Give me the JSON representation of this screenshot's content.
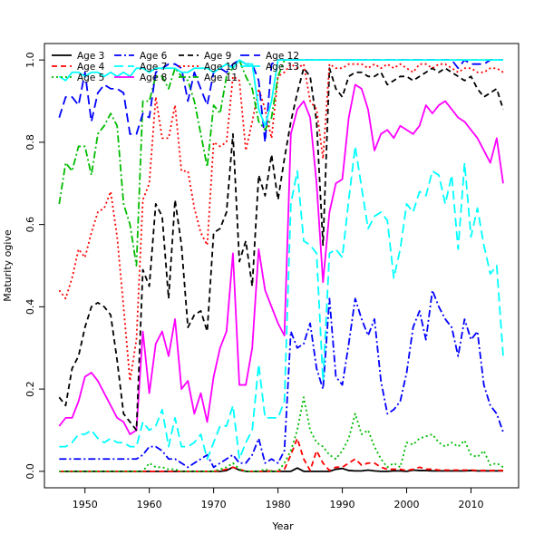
{
  "chart_data": {
    "type": "line",
    "title": "",
    "xlabel": "Year",
    "ylabel": "Maturity ogive",
    "xlim": [
      1943.7,
      2017.4
    ],
    "ylim": [
      -0.04,
      1.04
    ],
    "xticks": [
      1950,
      1960,
      1970,
      1980,
      1990,
      2000,
      2010
    ],
    "yticks": [
      0.0,
      0.2,
      0.4,
      0.6,
      0.8,
      1.0
    ],
    "ytick_labels": [
      "0.0",
      "0.2",
      "0.4",
      "0.6",
      "0.8",
      "1.0"
    ],
    "grid": false,
    "legend_position": "top-left",
    "legend_columns": 4,
    "x": [
      1946,
      1947,
      1948,
      1949,
      1950,
      1951,
      1952,
      1953,
      1954,
      1955,
      1956,
      1957,
      1958,
      1959,
      1960,
      1961,
      1962,
      1963,
      1964,
      1965,
      1966,
      1967,
      1968,
      1969,
      1970,
      1971,
      1972,
      1973,
      1974,
      1975,
      1976,
      1977,
      1978,
      1979,
      1980,
      1981,
      1982,
      1983,
      1984,
      1985,
      1986,
      1987,
      1988,
      1989,
      1990,
      1991,
      1992,
      1993,
      1994,
      1995,
      1996,
      1997,
      1998,
      1999,
      2000,
      2001,
      2002,
      2003,
      2004,
      2005,
      2006,
      2007,
      2008,
      2009,
      2010,
      2011,
      2012,
      2013,
      2014,
      2015
    ],
    "series": [
      {
        "name": "Age 3",
        "color": "#000000",
        "dash": "",
        "values": [
          0.0,
          0.0,
          0.0,
          0.0,
          0.0,
          0.0,
          0.0,
          0.0,
          0.0,
          0.0,
          0.0,
          0.0,
          0.0,
          0.0,
          0.0,
          0.0,
          0.0,
          0.0,
          0.0,
          0.0,
          0.0,
          0.0,
          0.0,
          0.0,
          0.0,
          0.0,
          0.002,
          0.01,
          0.003,
          0.0,
          0.0,
          0.0,
          0.0,
          0.0,
          0.0,
          0.0,
          0.0,
          0.008,
          0.0,
          0.0,
          0.0,
          0.0,
          0.0,
          0.005,
          0.007,
          0.002,
          0.001,
          0.001,
          0.003,
          0.001,
          0.0,
          0.0,
          0.001,
          0.001,
          0.0,
          0.003,
          0.002,
          0.002,
          0.001,
          0.001,
          0.001,
          0.001,
          0.001,
          0.001,
          0.002,
          0.001,
          0.001,
          0.001,
          0.001,
          0.001
        ]
      },
      {
        "name": "Age 4",
        "color": "#ff0000",
        "dash": "6,4",
        "values": [
          0.0,
          0.0,
          0.0,
          0.0,
          0.0,
          0.0,
          0.0,
          0.0,
          0.0,
          0.0,
          0.0,
          0.0,
          0.0,
          0.0,
          0.0,
          0.0,
          0.0,
          0.0,
          0.0,
          0.0,
          0.0,
          0.0,
          0.0,
          0.0,
          0.0,
          0.002,
          0.005,
          0.01,
          0.005,
          0.0,
          0.0,
          0.0,
          0.0,
          0.001,
          0.0,
          0.005,
          0.04,
          0.08,
          0.03,
          0.002,
          0.05,
          0.02,
          0.002,
          0.01,
          0.01,
          0.02,
          0.03,
          0.015,
          0.02,
          0.02,
          0.01,
          0.005,
          0.005,
          0.005,
          0.002,
          0.005,
          0.01,
          0.005,
          0.005,
          0.003,
          0.003,
          0.003,
          0.003,
          0.003,
          0.003,
          0.002,
          0.002,
          0.002,
          0.002,
          0.002
        ]
      },
      {
        "name": "Age 5",
        "color": "#00bb00",
        "dash": "2,3",
        "values": [
          0.0,
          0.0,
          0.0,
          0.0,
          0.0,
          0.0,
          0.0,
          0.0,
          0.0,
          0.0,
          0.0,
          0.0,
          0.0,
          0.0,
          0.02,
          0.01,
          0.01,
          0.005,
          0.005,
          0.0,
          0.0,
          0.0,
          0.0,
          0.0,
          0.0,
          0.005,
          0.01,
          0.02,
          0.005,
          0.0,
          0.0,
          0.0,
          0.005,
          0.0,
          0.0,
          0.02,
          0.05,
          0.1,
          0.18,
          0.1,
          0.07,
          0.06,
          0.04,
          0.03,
          0.05,
          0.08,
          0.14,
          0.09,
          0.1,
          0.06,
          0.03,
          0.01,
          0.02,
          0.01,
          0.07,
          0.065,
          0.08,
          0.085,
          0.09,
          0.07,
          0.06,
          0.07,
          0.06,
          0.075,
          0.04,
          0.035,
          0.05,
          0.015,
          0.02,
          0.01
        ]
      },
      {
        "name": "Age 6",
        "color": "#0000ff",
        "dash": "8,3,2,3",
        "values": [
          0.03,
          0.03,
          0.03,
          0.03,
          0.03,
          0.03,
          0.03,
          0.03,
          0.03,
          0.03,
          0.03,
          0.03,
          0.03,
          0.04,
          0.06,
          0.06,
          0.05,
          0.03,
          0.03,
          0.02,
          0.01,
          0.02,
          0.03,
          0.04,
          0.01,
          0.02,
          0.03,
          0.04,
          0.02,
          0.02,
          0.04,
          0.08,
          0.02,
          0.03,
          0.02,
          0.05,
          0.34,
          0.3,
          0.31,
          0.36,
          0.25,
          0.2,
          0.42,
          0.23,
          0.21,
          0.31,
          0.42,
          0.37,
          0.33,
          0.37,
          0.22,
          0.14,
          0.15,
          0.17,
          0.24,
          0.35,
          0.39,
          0.32,
          0.44,
          0.4,
          0.37,
          0.35,
          0.28,
          0.37,
          0.32,
          0.34,
          0.21,
          0.16,
          0.14,
          0.095
        ]
      },
      {
        "name": "Age 7",
        "color": "#00ffff",
        "dash": "10,5",
        "values": [
          0.06,
          0.06,
          0.07,
          0.09,
          0.09,
          0.1,
          0.08,
          0.07,
          0.08,
          0.07,
          0.07,
          0.06,
          0.06,
          0.12,
          0.1,
          0.11,
          0.15,
          0.06,
          0.13,
          0.06,
          0.06,
          0.07,
          0.09,
          0.03,
          0.07,
          0.11,
          0.11,
          0.16,
          0.03,
          0.07,
          0.1,
          0.26,
          0.13,
          0.13,
          0.13,
          0.17,
          0.65,
          0.73,
          0.56,
          0.55,
          0.53,
          0.22,
          0.53,
          0.54,
          0.52,
          0.66,
          0.79,
          0.69,
          0.59,
          0.62,
          0.63,
          0.61,
          0.47,
          0.54,
          0.65,
          0.63,
          0.68,
          0.67,
          0.73,
          0.72,
          0.65,
          0.72,
          0.54,
          0.75,
          0.57,
          0.64,
          0.55,
          0.48,
          0.5,
          0.28
        ]
      },
      {
        "name": "Age 8",
        "color": "#ff00ff",
        "dash": "",
        "values": [
          0.11,
          0.13,
          0.13,
          0.17,
          0.23,
          0.24,
          0.22,
          0.19,
          0.16,
          0.13,
          0.12,
          0.09,
          0.1,
          0.34,
          0.19,
          0.31,
          0.34,
          0.28,
          0.37,
          0.2,
          0.22,
          0.14,
          0.19,
          0.12,
          0.23,
          0.3,
          0.34,
          0.53,
          0.21,
          0.21,
          0.3,
          0.54,
          0.44,
          0.4,
          0.36,
          0.33,
          0.82,
          0.88,
          0.9,
          0.86,
          0.7,
          0.46,
          0.63,
          0.7,
          0.71,
          0.86,
          0.94,
          0.93,
          0.88,
          0.78,
          0.82,
          0.83,
          0.81,
          0.84,
          0.83,
          0.82,
          0.84,
          0.89,
          0.87,
          0.89,
          0.9,
          0.88,
          0.86,
          0.85,
          0.83,
          0.81,
          0.78,
          0.75,
          0.81,
          0.7
        ]
      },
      {
        "name": "Age 9",
        "color": "#000000",
        "dash": "6,4",
        "values": [
          0.18,
          0.16,
          0.25,
          0.28,
          0.35,
          0.4,
          0.41,
          0.4,
          0.38,
          0.27,
          0.14,
          0.12,
          0.1,
          0.49,
          0.45,
          0.65,
          0.62,
          0.42,
          0.66,
          0.55,
          0.35,
          0.38,
          0.39,
          0.34,
          0.58,
          0.59,
          0.63,
          0.82,
          0.51,
          0.56,
          0.45,
          0.72,
          0.67,
          0.77,
          0.66,
          0.76,
          0.85,
          0.92,
          0.98,
          0.96,
          0.85,
          0.55,
          0.98,
          0.93,
          0.91,
          0.96,
          0.97,
          0.97,
          0.96,
          0.96,
          0.97,
          0.94,
          0.95,
          0.96,
          0.96,
          0.95,
          0.96,
          0.97,
          0.98,
          0.97,
          0.98,
          0.97,
          0.96,
          0.95,
          0.96,
          0.93,
          0.91,
          0.92,
          0.93,
          0.88
        ]
      },
      {
        "name": "Age 10",
        "color": "#ff0000",
        "dash": "2,3",
        "values": [
          0.44,
          0.42,
          0.47,
          0.54,
          0.52,
          0.58,
          0.63,
          0.64,
          0.68,
          0.57,
          0.4,
          0.22,
          0.32,
          0.66,
          0.7,
          0.91,
          0.81,
          0.81,
          0.89,
          0.73,
          0.73,
          0.64,
          0.58,
          0.55,
          0.8,
          0.79,
          0.8,
          0.96,
          0.95,
          0.78,
          0.85,
          0.93,
          0.88,
          0.81,
          0.96,
          0.97,
          0.99,
          0.98,
          0.99,
          0.9,
          0.88,
          0.76,
          0.99,
          0.98,
          0.98,
          0.99,
          0.99,
          0.99,
          0.98,
          0.99,
          0.98,
          0.99,
          0.98,
          0.99,
          0.98,
          0.97,
          0.99,
          0.99,
          0.98,
          0.99,
          0.99,
          0.98,
          0.97,
          0.98,
          0.98,
          0.97,
          0.97,
          0.98,
          0.98,
          0.97
        ]
      },
      {
        "name": "Age 11",
        "color": "#00bb00",
        "dash": "8,3,2,3",
        "values": [
          0.65,
          0.75,
          0.73,
          0.79,
          0.79,
          0.72,
          0.82,
          0.84,
          0.87,
          0.84,
          0.65,
          0.6,
          0.5,
          0.9,
          0.9,
          0.96,
          0.96,
          0.93,
          0.98,
          0.96,
          0.95,
          0.9,
          0.82,
          0.74,
          0.89,
          0.87,
          0.96,
          0.98,
          1.0,
          0.96,
          0.93,
          0.85,
          0.83,
          0.86,
          0.96,
          1.0,
          1.0,
          1.0,
          1.0,
          1.0,
          1.0,
          1.0,
          1.0,
          1.0,
          1.0,
          1.0,
          1.0,
          1.0,
          1.0,
          1.0,
          1.0,
          1.0,
          1.0,
          1.0,
          1.0,
          1.0,
          1.0,
          1.0,
          1.0,
          1.0,
          1.0,
          1.0,
          1.0,
          1.0,
          1.0,
          1.0,
          1.0,
          1.0,
          1.0,
          1.0
        ]
      },
      {
        "name": "Age 12",
        "color": "#0000ff",
        "dash": "10,5",
        "values": [
          0.86,
          0.91,
          0.91,
          0.89,
          0.97,
          0.85,
          0.92,
          0.94,
          0.93,
          0.93,
          0.92,
          0.82,
          0.82,
          0.87,
          0.86,
          0.97,
          0.98,
          0.99,
          0.99,
          0.98,
          0.9,
          0.97,
          0.93,
          0.89,
          0.97,
          0.98,
          0.97,
          0.99,
          1.0,
          0.99,
          0.99,
          0.95,
          0.8,
          0.99,
          1.0,
          1.0,
          1.0,
          1.0,
          1.0,
          1.0,
          1.0,
          1.0,
          1.0,
          1.0,
          1.0,
          1.0,
          1.0,
          1.0,
          1.0,
          1.0,
          1.0,
          1.0,
          1.0,
          1.0,
          1.0,
          1.0,
          1.0,
          1.0,
          1.0,
          1.0,
          1.0,
          1.0,
          0.98,
          1.0,
          0.99,
          0.99,
          0.99,
          1.0,
          1.0,
          1.0
        ]
      },
      {
        "name": "Age 13",
        "color": "#00ffff",
        "dash": "",
        "values": [
          0.96,
          0.95,
          0.97,
          0.97,
          0.96,
          0.97,
          0.97,
          0.96,
          0.97,
          0.96,
          0.97,
          0.96,
          0.98,
          0.98,
          0.97,
          0.98,
          0.98,
          0.98,
          0.98,
          0.97,
          0.97,
          0.98,
          0.98,
          0.98,
          0.97,
          0.98,
          0.99,
          0.98,
          1.0,
          0.99,
          0.99,
          0.88,
          0.84,
          0.9,
          1.0,
          1.0,
          1.0,
          1.0,
          1.0,
          1.0,
          1.0,
          1.0,
          1.0,
          1.0,
          1.0,
          1.0,
          1.0,
          1.0,
          1.0,
          1.0,
          1.0,
          1.0,
          1.0,
          1.0,
          1.0,
          1.0,
          1.0,
          1.0,
          1.0,
          1.0,
          1.0,
          1.0,
          1.0,
          1.0,
          1.0,
          1.0,
          1.0,
          1.0,
          1.0,
          1.0
        ]
      }
    ]
  }
}
